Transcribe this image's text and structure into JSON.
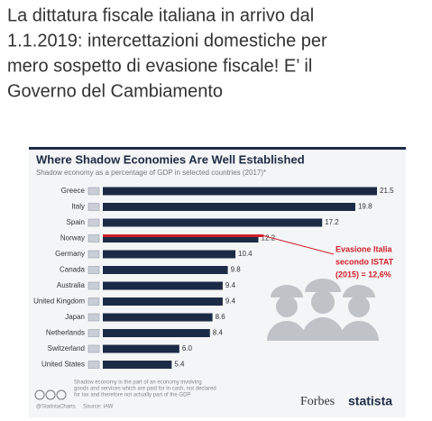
{
  "post_text": [
    "La dittatura fiscale italiana in arrivo dal",
    "1.1.2019: intercettazioni domestiche per",
    "mero sospetto di evasione fiscale! E’ il",
    "Governo del Cambiamento"
  ],
  "chart_data": {
    "type": "bar",
    "orientation": "horizontal",
    "title": "Where Shadow Economies Are Well Established",
    "subtitle": "Shadow economy as a percentage of GDP in selected countries (2017)*",
    "categories": [
      "Greece",
      "Italy",
      "Spain",
      "Norway",
      "Germany",
      "Canada",
      "Australia",
      "United Kingdom",
      "Japan",
      "Netherlands",
      "Switzerland",
      "United States"
    ],
    "values": [
      21.5,
      19.8,
      17.2,
      12.2,
      10.4,
      9.8,
      9.4,
      9.4,
      8.6,
      8.4,
      6.0,
      5.4
    ],
    "value_labels": [
      "21.5",
      "19.8",
      "17.2",
      "12.2",
      "10.4",
      "9.8",
      "9.4",
      "9.4",
      "8.6",
      "8.4",
      "6.0",
      "5.4"
    ],
    "color": "#1c2b45",
    "annotation": {
      "lines": [
        "Evasione Italia",
        "secondo ISTAT",
        "(2015) = 12,6%"
      ],
      "value": 12.6,
      "category_index": 3,
      "color": "#d0202a"
    },
    "footnote": [
      "Shadow economy is the part of an economy involving",
      "goods and services which are paid for in cash, not declared",
      "for tax and therefore not actually part of the GDP"
    ],
    "credit": "@StatistaCharts",
    "source": "Source: IAW",
    "brands": [
      "Forbes",
      "statista"
    ]
  }
}
